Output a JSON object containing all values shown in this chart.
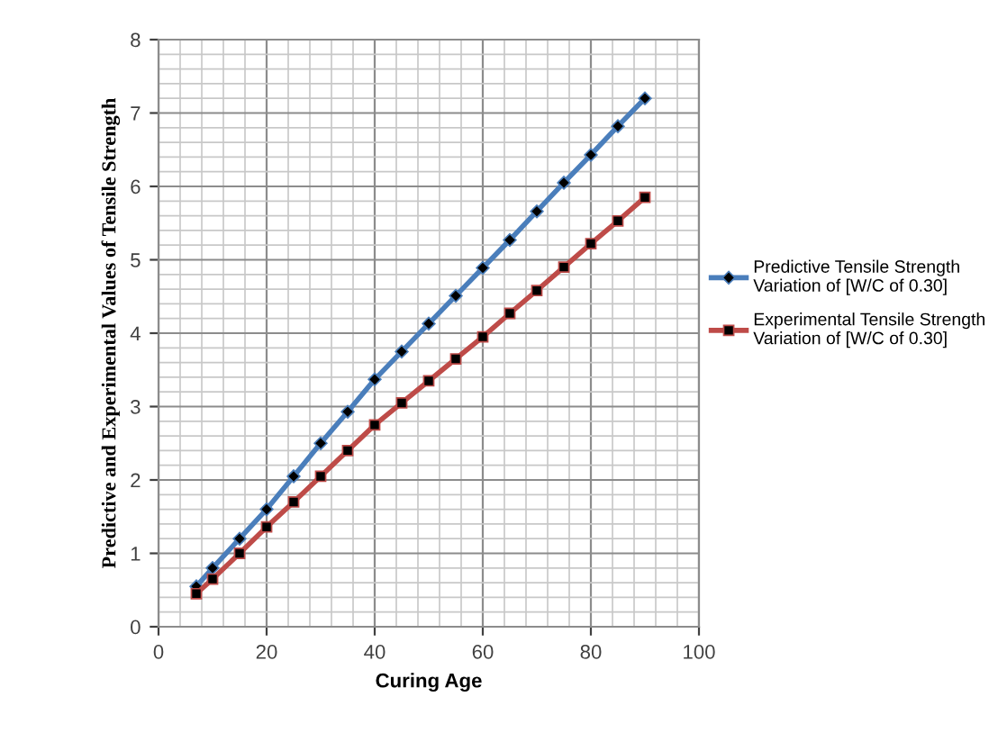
{
  "chart_data": {
    "type": "line",
    "xlabel": "Curing Age",
    "ylabel": "Predictive and Experimental Values of Tensile Strength",
    "x": [
      7,
      10,
      15,
      20,
      25,
      30,
      35,
      40,
      45,
      50,
      55,
      60,
      65,
      70,
      75,
      80,
      85,
      90
    ],
    "series": [
      {
        "name": "Predictive Tensile Strength Variation of [W/C of 0.30]",
        "color": "#4a7ebb",
        "marker": "diamond",
        "values": [
          0.55,
          0.8,
          1.2,
          1.6,
          2.05,
          2.5,
          2.93,
          3.37,
          3.75,
          4.13,
          4.51,
          4.89,
          5.27,
          5.66,
          6.05,
          6.43,
          6.82,
          7.2
        ]
      },
      {
        "name": "Experimental Tensile Strength Variation of [W/C of 0.30]",
        "color": "#be4b48",
        "marker": "square",
        "values": [
          0.45,
          0.65,
          1.0,
          1.36,
          1.7,
          2.05,
          2.4,
          2.75,
          3.05,
          3.35,
          3.65,
          3.95,
          4.27,
          4.58,
          4.9,
          5.22,
          5.53,
          5.85
        ]
      }
    ],
    "xlim": [
      0,
      100
    ],
    "xticks": [
      0,
      20,
      40,
      60,
      80,
      100
    ],
    "ylim": [
      0,
      8
    ],
    "yticks": [
      0,
      1,
      2,
      3,
      4,
      5,
      6,
      7,
      8
    ],
    "grid": true,
    "legend": "right",
    "line_style": "solid"
  }
}
